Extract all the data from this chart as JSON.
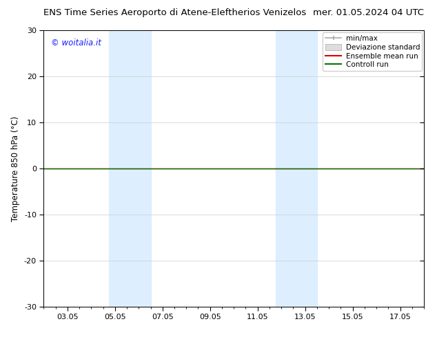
{
  "title": "ENS Time Series Aeroporto di Atene-Eleftherios Venizelos",
  "title_right": "mer. 01.05.2024 04 UTC",
  "ylabel": "Temperature 850 hPa (°C)",
  "watermark": "© woitalia.it",
  "watermark_color": "#1a1aff",
  "ylim": [
    -30,
    30
  ],
  "yticks": [
    -30,
    -20,
    -10,
    0,
    10,
    20,
    30
  ],
  "xtick_labels": [
    "03.05",
    "05.05",
    "07.05",
    "09.05",
    "11.05",
    "13.05",
    "15.05",
    "17.05"
  ],
  "xtick_positions": [
    2,
    4,
    6,
    8,
    10,
    12,
    14,
    16
  ],
  "xmin": 1,
  "xmax": 17,
  "shaded_bands": [
    {
      "xmin": 3.75,
      "xmax": 5.5,
      "color": "#ddeeff"
    },
    {
      "xmin": 10.75,
      "xmax": 12.5,
      "color": "#ddeeff"
    }
  ],
  "hline_y": 0,
  "green_line_color": "#007700",
  "red_line_color": "#dd0000",
  "minmax_color": "#aaaaaa",
  "std_color": "#cccccc",
  "bg_color": "#ffffff",
  "plot_bg_color": "#ffffff",
  "legend_entries": [
    "min/max",
    "Deviazione standard",
    "Ensemble mean run",
    "Controll run"
  ],
  "title_fontsize": 9.5,
  "axis_label_fontsize": 8.5,
  "tick_fontsize": 8,
  "watermark_fontsize": 8.5,
  "legend_fontsize": 7.5
}
